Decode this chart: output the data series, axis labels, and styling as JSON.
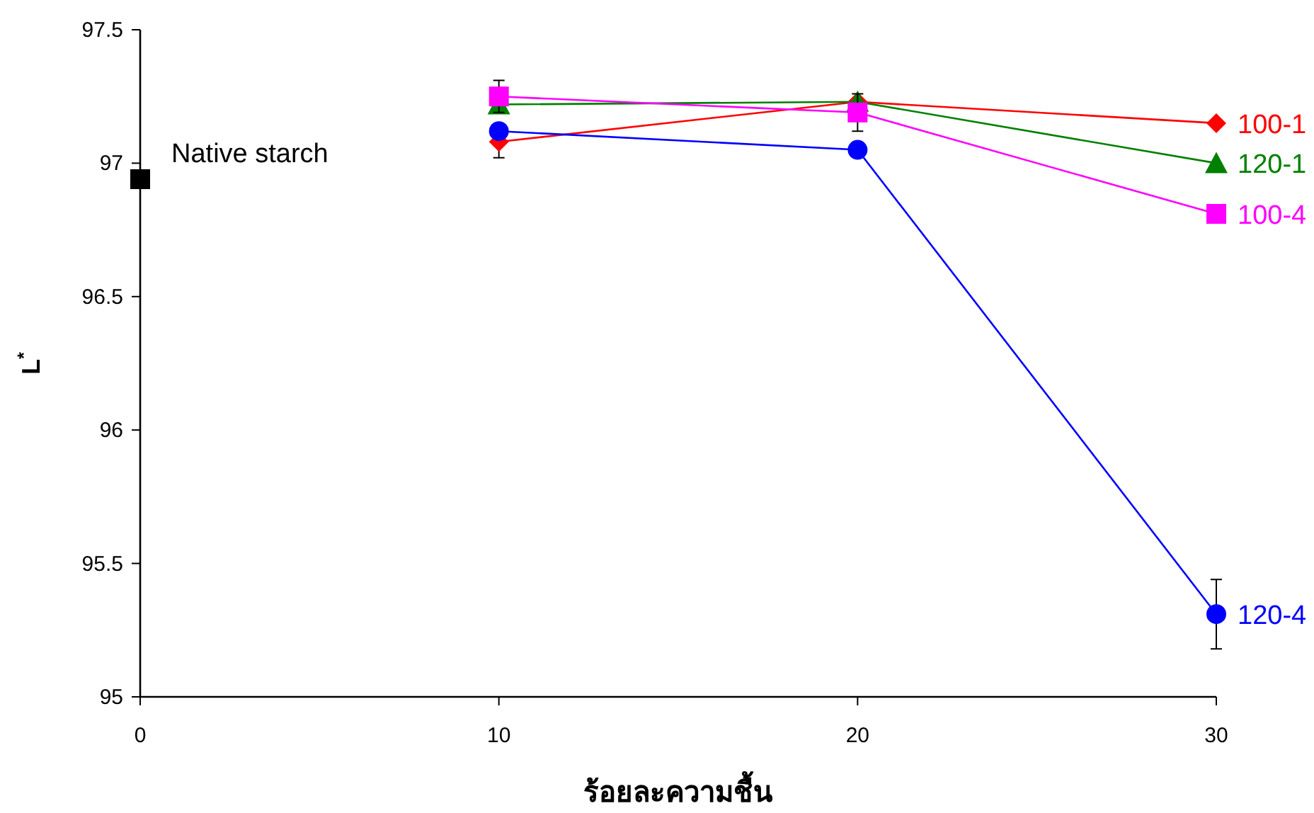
{
  "chart_data": {
    "type": "line",
    "xlabel": "ร้อยละความชื้น",
    "ylabel": "L$^{*}$",
    "xlim": [
      0,
      30
    ],
    "xticks": [
      0,
      10,
      20,
      30
    ],
    "ylim": [
      95,
      97.5
    ],
    "yticks": [
      95,
      95.5,
      96,
      96.5,
      97,
      97.5
    ],
    "grid": false,
    "legend": false,
    "line_style": "solid",
    "series": [
      {
        "name": "Native starch",
        "type": "scatter",
        "marker": "square",
        "color": "#000000",
        "x": [
          0
        ],
        "values": [
          96.94
        ]
      },
      {
        "name": "100-1",
        "marker": "diamond",
        "color": "#ff0000",
        "x": [
          10,
          20,
          30
        ],
        "values": [
          97.08,
          97.23,
          97.15
        ],
        "errors": [
          0.06,
          null,
          null
        ]
      },
      {
        "name": "120-1",
        "marker": "triangle",
        "color": "#008000",
        "x": [
          10,
          20,
          30
        ],
        "values": [
          97.22,
          97.23,
          97.0
        ]
      },
      {
        "name": "100-4",
        "marker": "square",
        "color": "#ff00ff",
        "x": [
          10,
          20,
          30
        ],
        "values": [
          97.25,
          97.19,
          96.81
        ],
        "errors": [
          0.06,
          0.07,
          null
        ]
      },
      {
        "name": "120-4",
        "marker": "circle",
        "color": "#0000ff",
        "x": [
          10,
          20,
          30
        ],
        "values": [
          97.12,
          97.05,
          95.31
        ],
        "errors": [
          null,
          null,
          0.13
        ]
      }
    ]
  }
}
